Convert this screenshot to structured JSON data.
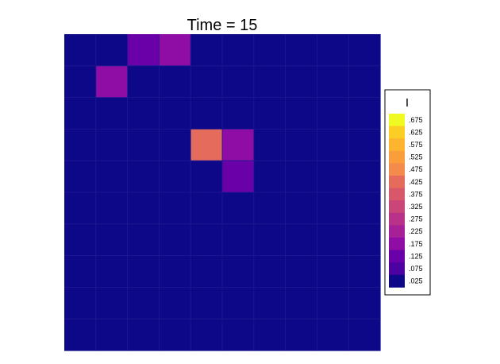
{
  "chart_data": {
    "type": "heatmap",
    "title": "Time = 15",
    "xlabel": "",
    "ylabel": "",
    "grid": true,
    "legend_placement": "right",
    "rows": 10,
    "cols": 10,
    "base_value": 0.025,
    "cells": [
      {
        "row": 0,
        "col": 2,
        "value": 0.125
      },
      {
        "row": 0,
        "col": 3,
        "value": 0.175
      },
      {
        "row": 1,
        "col": 1,
        "value": 0.175
      },
      {
        "row": 3,
        "col": 4,
        "value": 0.425
      },
      {
        "row": 3,
        "col": 5,
        "value": 0.175
      },
      {
        "row": 4,
        "col": 5,
        "value": 0.125
      }
    ],
    "colorbar": {
      "title": "I",
      "levels": [
        {
          "label": ".675",
          "value": 0.675,
          "color": "#f0f921"
        },
        {
          "label": ".625",
          "value": 0.625,
          "color": "#fcce25"
        },
        {
          "label": ".575",
          "value": 0.575,
          "color": "#fdb42f"
        },
        {
          "label": ".525",
          "value": 0.525,
          "color": "#fa9e3b"
        },
        {
          "label": ".475",
          "value": 0.475,
          "color": "#f28b4b"
        },
        {
          "label": ".425",
          "value": 0.425,
          "color": "#e56b5d"
        },
        {
          "label": ".375",
          "value": 0.375,
          "color": "#d8576b"
        },
        {
          "label": ".325",
          "value": 0.325,
          "color": "#ca4678"
        },
        {
          "label": ".275",
          "value": 0.275,
          "color": "#b93289"
        },
        {
          "label": ".225",
          "value": 0.225,
          "color": "#a62098"
        },
        {
          "label": ".175",
          "value": 0.175,
          "color": "#8f0da4"
        },
        {
          "label": ".125",
          "value": 0.125,
          "color": "#6a00a8"
        },
        {
          "label": ".075",
          "value": 0.075,
          "color": "#4c02a1"
        },
        {
          "label": ".025",
          "value": 0.025,
          "color": "#0d0887"
        }
      ]
    }
  },
  "colors": {
    "grid_line": "#1f1990",
    "legend_border": "#000000"
  }
}
